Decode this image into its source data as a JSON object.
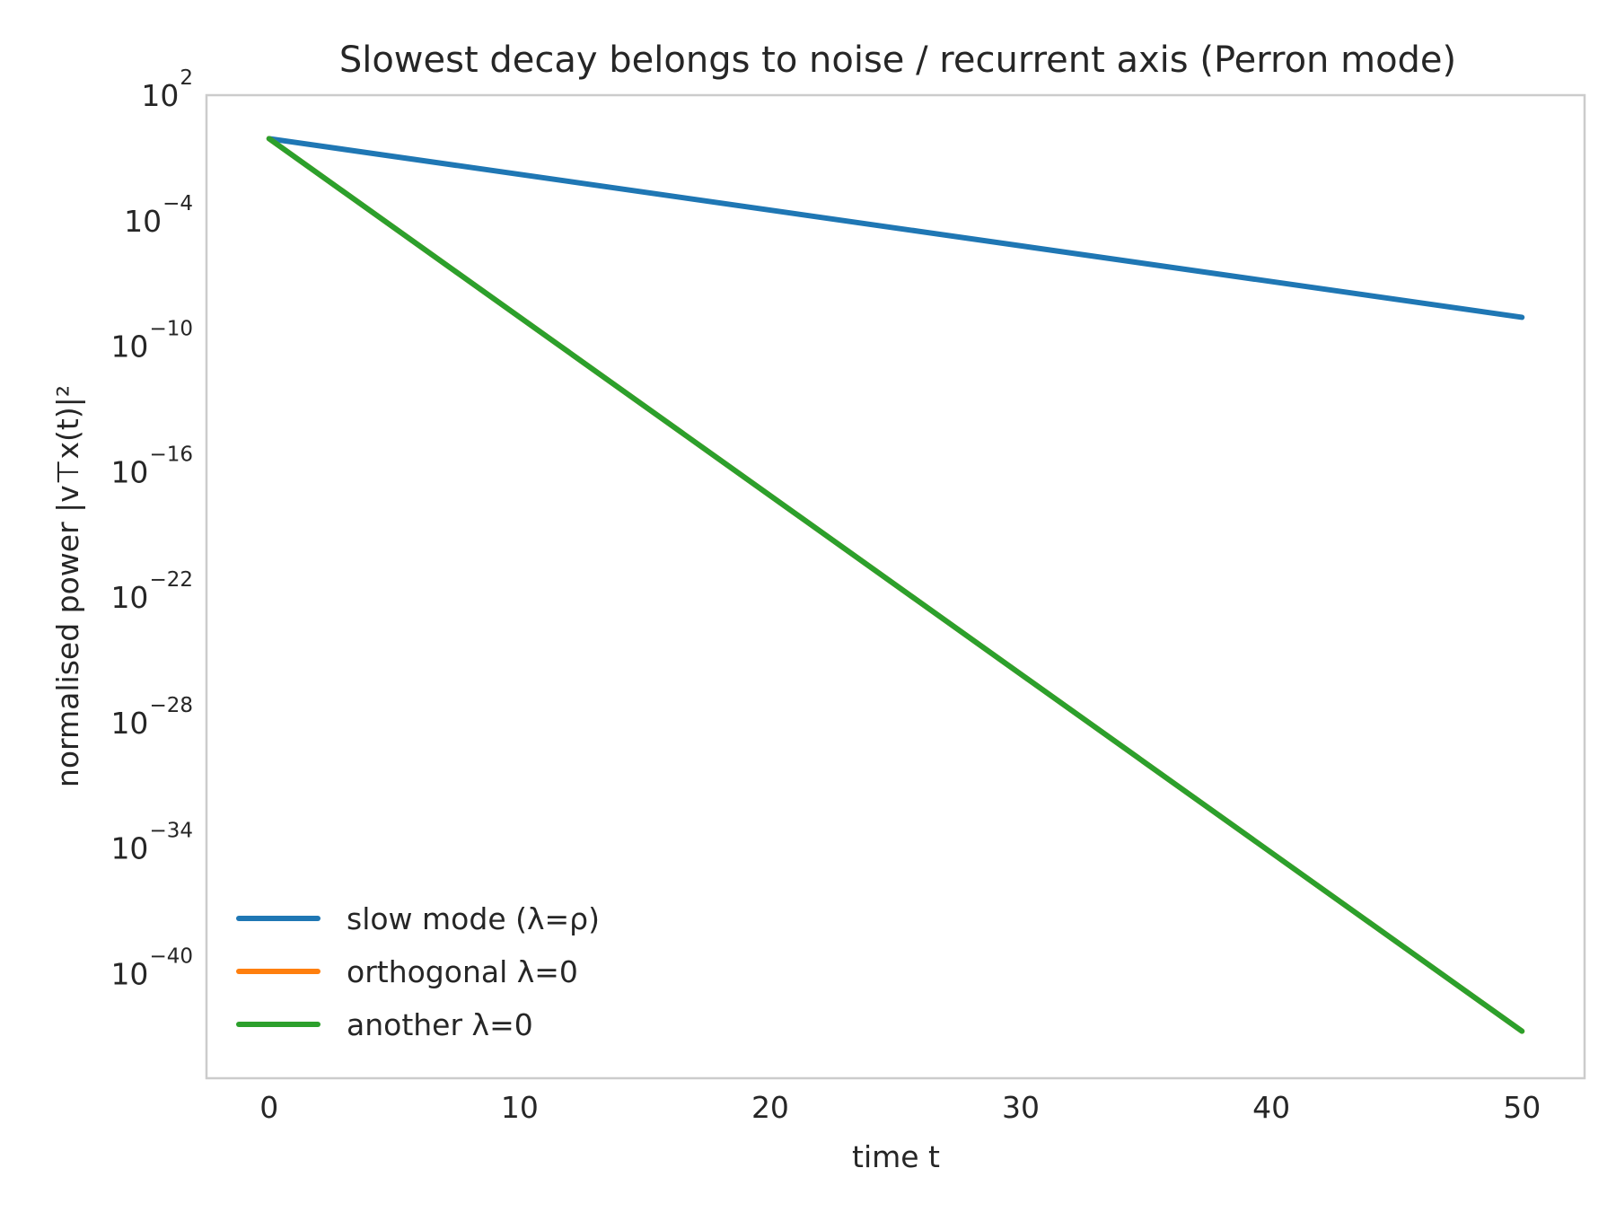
{
  "chart_data": {
    "type": "line",
    "title": "Slowest decay belongs to noise / recurrent axis (Perron mode)",
    "xlabel": "time  t",
    "ylabel": "normalised power  |v⊤x(t)|²",
    "x_scale": "linear",
    "y_scale": "log",
    "xlim": [
      -2.5,
      52.5
    ],
    "ylim_log10_exponent": [
      -45,
      2
    ],
    "grid": false,
    "legend_position": "lower-left",
    "x_ticks": [
      0,
      10,
      20,
      30,
      40,
      50
    ],
    "x_tick_labels": [
      "0",
      "10",
      "20",
      "30",
      "40",
      "50"
    ],
    "y_tick_exponents": [
      2,
      -4,
      -10,
      -16,
      -22,
      -28,
      -34,
      -40
    ],
    "y_tick_labels": [
      "10^2",
      "10^-4",
      "10^-10",
      "10^-16",
      "10^-22",
      "10^-28",
      "10^-34",
      "10^-40"
    ],
    "series": [
      {
        "name": "slow mode (λ=ρ)",
        "color": "#1f77b4",
        "x": [
          0,
          50
        ],
        "log10_y": [
          -0.08,
          -8.62
        ]
      },
      {
        "name": "orthogonal λ=0",
        "color": "#ff7f0e",
        "x": [
          0,
          50
        ],
        "log10_y": [
          -0.08,
          -42.75
        ]
      },
      {
        "name": "another λ=0",
        "color": "#2ca02c",
        "x": [
          0,
          50
        ],
        "log10_y": [
          -0.08,
          -42.75
        ]
      }
    ]
  }
}
